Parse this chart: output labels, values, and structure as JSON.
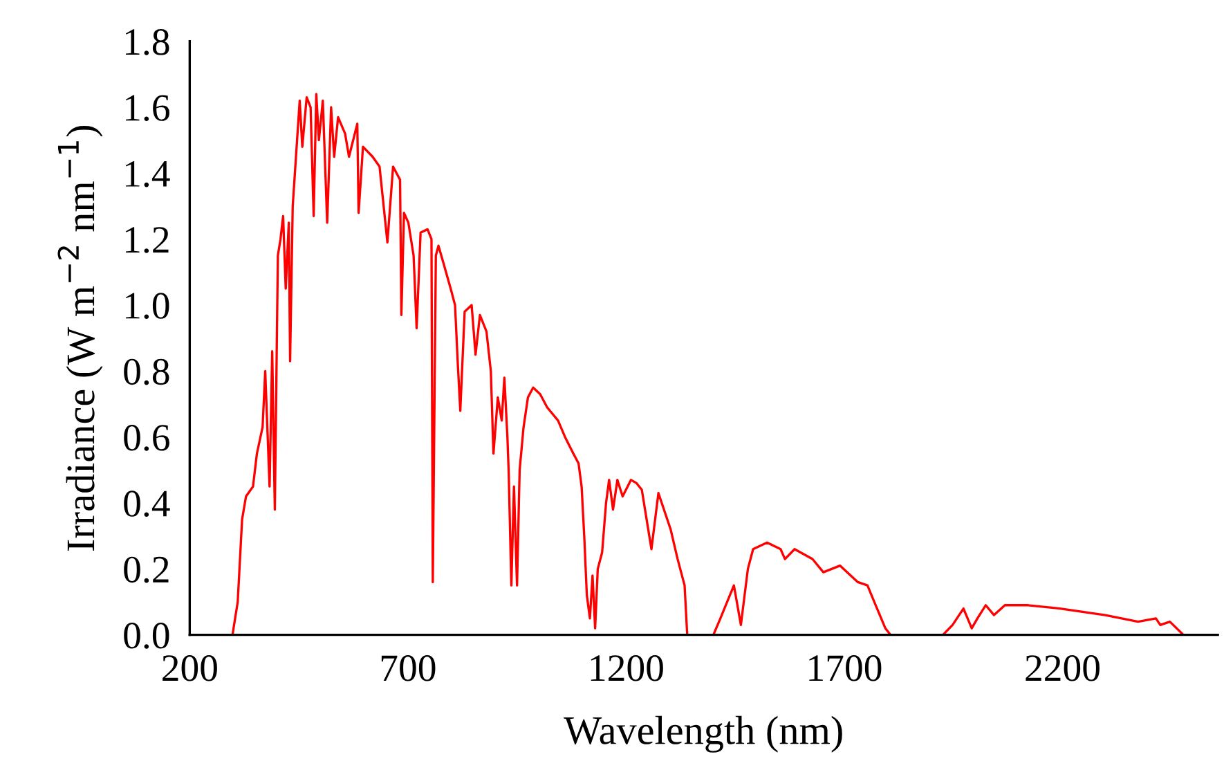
{
  "chart_data": {
    "type": "line",
    "xlabel": "Wavelength (nm)",
    "ylabel": "Irradiance (W m$^{−2}$ nm$^{−1}$)",
    "series": [
      {
        "color": "#ff0000",
        "x": [
          280,
          298,
          310,
          320,
          329,
          345,
          354,
          367,
          373,
          383,
          389,
          395,
          402,
          408,
          414,
          420,
          427,
          430,
          436,
          446,
          452,
          458,
          468,
          477,
          484,
          490,
          496,
          505,
          515,
          524,
          531,
          540,
          556,
          565,
          584,
          587,
          597,
          619,
          635,
          653,
          666,
          682,
          685,
          691,
          701,
          713,
          720,
          729,
          745,
          754,
          757,
          764,
          770,
          783,
          798,
          808,
          814,
          820,
          830,
          846,
          855,
          865,
          880,
          890,
          896,
          906,
          915,
          921,
          928,
          931,
          937,
          943,
          950,
          956,
          965,
          975,
          987,
          1003,
          1019,
          1044,
          1060,
          1079,
          1091,
          1098,
          1104,
          1110,
          1117,
          1123,
          1129,
          1135,
          1145,
          1154,
          1161,
          1170,
          1180,
          1192,
          1211,
          1224,
          1236,
          1258,
          1274,
          1302,
          1318,
          1334,
          1340,
          1400,
          1416,
          1447,
          1463,
          1479,
          1491,
          1523,
          1554,
          1564,
          1586,
          1627,
          1652,
          1690,
          1731,
          1753,
          1775,
          1794,
          1806,
          1926,
          1948,
          1973,
          1992,
          2005,
          2024,
          2043,
          2068,
          2121,
          2194,
          2298,
          2373,
          2414,
          2424,
          2446,
          2477,
          2500
        ],
        "values": [
          0,
          0,
          0.1,
          0.35,
          0.42,
          0.45,
          0.55,
          0.63,
          0.8,
          0.45,
          0.86,
          0.38,
          1.15,
          1.2,
          1.27,
          1.05,
          1.25,
          0.83,
          1.3,
          1.5,
          1.62,
          1.48,
          1.63,
          1.6,
          1.27,
          1.64,
          1.5,
          1.62,
          1.25,
          1.6,
          1.45,
          1.57,
          1.52,
          1.45,
          1.55,
          1.28,
          1.48,
          1.45,
          1.42,
          1.19,
          1.42,
          1.38,
          0.97,
          1.28,
          1.25,
          1.15,
          0.93,
          1.22,
          1.23,
          1.2,
          0.16,
          1.15,
          1.18,
          1.12,
          1.05,
          1.0,
          0.83,
          0.68,
          0.98,
          1.0,
          0.85,
          0.97,
          0.92,
          0.8,
          0.55,
          0.72,
          0.65,
          0.78,
          0.6,
          0.49,
          0.15,
          0.45,
          0.15,
          0.5,
          0.63,
          0.72,
          0.75,
          0.73,
          0.69,
          0.65,
          0.6,
          0.55,
          0.52,
          0.45,
          0.3,
          0.12,
          0.05,
          0.18,
          0.02,
          0.2,
          0.25,
          0.4,
          0.47,
          0.38,
          0.47,
          0.42,
          0.47,
          0.46,
          0.44,
          0.26,
          0.43,
          0.32,
          0.23,
          0.15,
          0,
          0,
          0.05,
          0.15,
          0.03,
          0.2,
          0.26,
          0.28,
          0.26,
          0.23,
          0.26,
          0.23,
          0.19,
          0.21,
          0.16,
          0.15,
          0.08,
          0.02,
          0,
          0,
          0.03,
          0.08,
          0.02,
          0.05,
          0.09,
          0.06,
          0.09,
          0.09,
          0.08,
          0.06,
          0.04,
          0.05,
          0.03,
          0.04,
          0,
          0
        ]
      }
    ],
    "xlim": [
      200,
      2556
    ],
    "xticks": [
      200,
      700,
      1200,
      1700,
      2200
    ],
    "ylim": [
      0,
      1.8
    ],
    "yticks": [
      {
        "value": 0,
        "label": "0.0"
      },
      {
        "value": 0.2,
        "label": "0.2"
      },
      {
        "value": 0.4,
        "label": "0.4"
      },
      {
        "value": 0.6,
        "label": "0.6"
      },
      {
        "value": 0.8,
        "label": "0.8"
      },
      {
        "value": 1.0,
        "label": "1.0"
      },
      {
        "value": 1.2,
        "label": "1.2"
      },
      {
        "value": 1.4,
        "label": "1.4"
      },
      {
        "value": 1.6,
        "label": "1.6"
      },
      {
        "value": 1.8,
        "label": "1.8"
      }
    ],
    "grid": false,
    "legend": false,
    "marker": "none",
    "line_style": "solid"
  }
}
